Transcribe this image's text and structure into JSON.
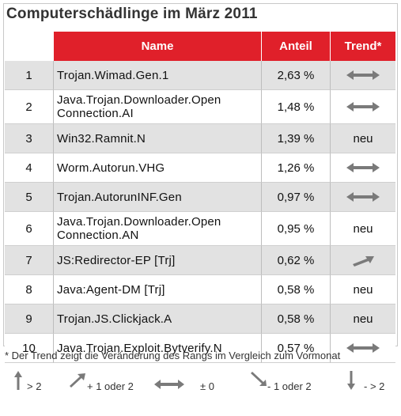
{
  "title": "Computerschädlinge im März 2011",
  "headers": {
    "rank": "",
    "name": "Name",
    "share": "Anteil",
    "trend": "Trend*"
  },
  "rows": [
    {
      "rank": "1",
      "name": "Trojan.Wimad.Gen.1",
      "share": "2,63 %",
      "trend": "±0",
      "trend_icon": "double-arrow-icon"
    },
    {
      "rank": "2",
      "name": "Java.Trojan.Downloader.Open Connection.AI",
      "share": "1,48 %",
      "trend": "±0",
      "trend_icon": "double-arrow-icon"
    },
    {
      "rank": "3",
      "name": "Win32.Ramnit.N",
      "share": "1,39 %",
      "trend": "neu",
      "trend_icon": ""
    },
    {
      "rank": "4",
      "name": "Worm.Autorun.VHG",
      "share": "1,26 %",
      "trend": "±0",
      "trend_icon": "double-arrow-icon"
    },
    {
      "rank": "5",
      "name": "Trojan.AutorunINF.Gen",
      "share": "0,97 %",
      "trend": "±0",
      "trend_icon": "double-arrow-icon"
    },
    {
      "rank": "6",
      "name": "Java.Trojan.Downloader.Open Connection.AN",
      "share": "0,95 %",
      "trend": "neu",
      "trend_icon": ""
    },
    {
      "rank": "7",
      "name": "JS:Redirector-EP [Trj]",
      "share": "0,62 %",
      "trend": "+1 oder 2",
      "trend_icon": "arrow-up-right-icon"
    },
    {
      "rank": "8",
      "name": "Java:Agent-DM [Trj]",
      "share": "0,58 %",
      "trend": "neu",
      "trend_icon": ""
    },
    {
      "rank": "9",
      "name": "Trojan.JS.Clickjack.A",
      "share": "0,58 %",
      "trend": "neu",
      "trend_icon": ""
    },
    {
      "rank": "10",
      "name": "Java.Trojan.Exploit.Bytverify.N",
      "share": "0,57 %",
      "trend": "±0",
      "trend_icon": "double-arrow-icon"
    }
  ],
  "footnote": "* Der Trend zeigt die Veränderung des Rangs im Vergleich zum Vormonat",
  "legend": [
    {
      "label": "> 2",
      "icon": "arrow-up-icon"
    },
    {
      "label": "+ 1 oder 2",
      "icon": "arrow-up-right-icon"
    },
    {
      "label": "± 0",
      "icon": "double-arrow-icon"
    },
    {
      "label": "- 1 oder  2",
      "icon": "arrow-down-right-icon"
    },
    {
      "label": "- > 2",
      "icon": "arrow-down-icon"
    }
  ],
  "colors": {
    "header_bg": "#e0202a",
    "header_text": "#ffffff",
    "alt_row": "#e2e2e2",
    "arrow": "#7a7a7a"
  }
}
